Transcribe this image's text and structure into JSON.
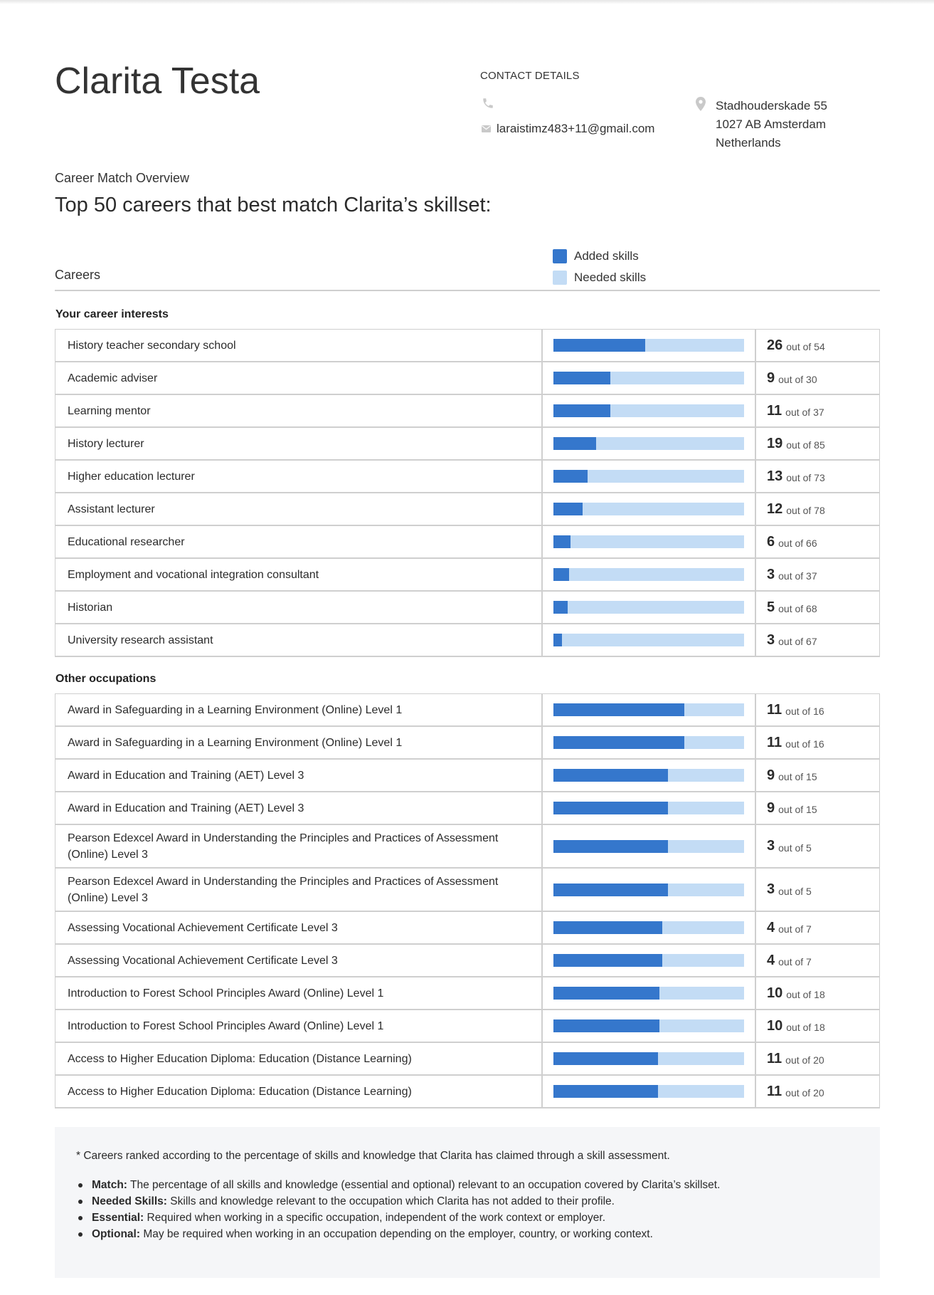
{
  "profile": {
    "name": "Clarita Testa",
    "contact_heading": "CONTACT DETAILS",
    "email": "laraistimz483+11@gmail.com",
    "address_lines": [
      "Stadhouderskade 55",
      "1027 AB Amsterdam",
      "Netherlands"
    ]
  },
  "overview": {
    "label": "Career Match Overview",
    "title": "Top 50 careers that best match Clarita’s skillset:"
  },
  "legend": {
    "added_label": "Added skills",
    "needed_label": "Needed skills",
    "added_color": "#3577cc",
    "needed_color": "#c3dcf5"
  },
  "table_header": {
    "careers_label": "Careers"
  },
  "sections": [
    {
      "title": "Your career interests",
      "rows": [
        {
          "name": "History teacher secondary school",
          "added": 26,
          "total": 54,
          "out_of_text": "out of 54"
        },
        {
          "name": "Academic adviser",
          "added": 9,
          "total": 30,
          "out_of_text": "out of 30"
        },
        {
          "name": "Learning mentor",
          "added": 11,
          "total": 37,
          "out_of_text": "out of 37"
        },
        {
          "name": "History lecturer",
          "added": 19,
          "total": 85,
          "out_of_text": "out of 85"
        },
        {
          "name": "Higher education lecturer",
          "added": 13,
          "total": 73,
          "out_of_text": "out of 73"
        },
        {
          "name": "Assistant lecturer",
          "added": 12,
          "total": 78,
          "out_of_text": "out of 78"
        },
        {
          "name": "Educational researcher",
          "added": 6,
          "total": 66,
          "out_of_text": "out of 66"
        },
        {
          "name": "Employment and vocational integration consultant",
          "added": 3,
          "total": 37,
          "out_of_text": "out of 37"
        },
        {
          "name": "Historian",
          "added": 5,
          "total": 68,
          "out_of_text": "out of 68"
        },
        {
          "name": "University research assistant",
          "added": 3,
          "total": 67,
          "out_of_text": "out of 67"
        }
      ]
    },
    {
      "title": "Other occupations",
      "rows": [
        {
          "name": "Award in Safeguarding in a Learning Environment (Online) Level 1",
          "added": 11,
          "total": 16,
          "out_of_text": "out of 16"
        },
        {
          "name": "Award in Safeguarding in a Learning Environment (Online) Level 1",
          "added": 11,
          "total": 16,
          "out_of_text": "out of 16"
        },
        {
          "name": "Award in Education and Training (AET) Level 3",
          "added": 9,
          "total": 15,
          "out_of_text": "out of 15"
        },
        {
          "name": "Award in Education and Training (AET) Level 3",
          "added": 9,
          "total": 15,
          "out_of_text": "out of 15"
        },
        {
          "name": "Pearson Edexcel Award in Understanding the Principles and Practices of Assessment (Online) Level 3",
          "added": 3,
          "total": 5,
          "out_of_text": "out of 5"
        },
        {
          "name": "Pearson Edexcel Award in Understanding the Principles and Practices of Assessment (Online) Level 3",
          "added": 3,
          "total": 5,
          "out_of_text": "out of 5"
        },
        {
          "name": "Assessing Vocational Achievement Certificate Level 3",
          "added": 4,
          "total": 7,
          "out_of_text": "out of 7"
        },
        {
          "name": "Assessing Vocational Achievement Certificate Level 3",
          "added": 4,
          "total": 7,
          "out_of_text": "out of 7"
        },
        {
          "name": "Introduction to Forest School Principles Award (Online) Level 1",
          "added": 10,
          "total": 18,
          "out_of_text": "out of 18"
        },
        {
          "name": "Introduction to Forest School Principles Award (Online) Level 1",
          "added": 10,
          "total": 18,
          "out_of_text": "out of 18"
        },
        {
          "name": "Access to Higher Education Diploma: Education (Distance Learning)",
          "added": 11,
          "total": 20,
          "out_of_text": "out of 20"
        },
        {
          "name": "Access to Higher Education Diploma: Education (Distance Learning)",
          "added": 11,
          "total": 20,
          "out_of_text": "out of 20"
        }
      ]
    }
  ],
  "notes": {
    "intro": "* Careers ranked according to the percentage of skills and knowledge that Clarita has claimed through a skill assessment.",
    "items": [
      {
        "term": "Match:",
        "text": "The percentage of all skills and knowledge (essential and optional) relevant to an occupation covered by Clarita’s skillset."
      },
      {
        "term": "Needed Skills:",
        "text": "Skills and knowledge relevant to the occupation which Clarita has not added to their profile."
      },
      {
        "term": "Essential:",
        "text": "Required when working in a specific occupation, independent of the work context or employer."
      },
      {
        "term": "Optional:",
        "text": "May be required when working in an occupation depending on the employer, country, or working context."
      }
    ]
  }
}
